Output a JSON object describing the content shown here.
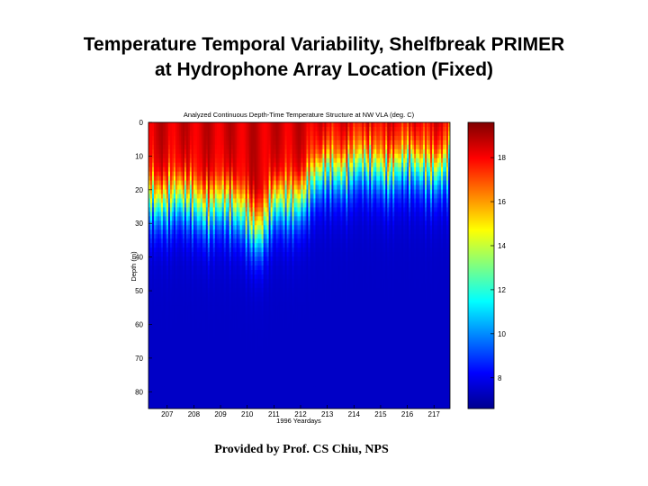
{
  "slide": {
    "title_line1": "Temperature Temporal Variability, Shelfbreak PRIMER",
    "title_line2": "at Hydrophone Array Location (Fixed)",
    "credit": "Provided by Prof. CS Chiu, NPS"
  },
  "chart_data": {
    "type": "heatmap",
    "title": "Analyzed Continuous Depth-Time Temperature Structure at NW VLA (deg. C)",
    "xlabel": "1996 Yeardays",
    "ylabel": "Depth (m)",
    "xlim": [
      206.3,
      217.6
    ],
    "ylim": [
      0,
      85
    ],
    "y_inverted": true,
    "x_ticks": [
      207,
      208,
      209,
      210,
      211,
      212,
      213,
      214,
      215,
      216,
      217
    ],
    "y_ticks": [
      0,
      10,
      20,
      30,
      40,
      50,
      60,
      70,
      80
    ],
    "colorbar": {
      "ticks": [
        8,
        10,
        12,
        14,
        16,
        18
      ],
      "range": [
        6.6,
        19.6
      ],
      "colormap": "jet"
    },
    "grid": false,
    "surface_temperature_degC": 18.5,
    "deep_temperature_degC": 7.5,
    "thermocline": {
      "yeardays": [
        206.3,
        207,
        208,
        209,
        210,
        210.5,
        211,
        212,
        213,
        214,
        215,
        216,
        217,
        217.6
      ],
      "depth_m": [
        22,
        23,
        24,
        25,
        27,
        33,
        25,
        22,
        14,
        13,
        13,
        13,
        13,
        13
      ]
    }
  }
}
